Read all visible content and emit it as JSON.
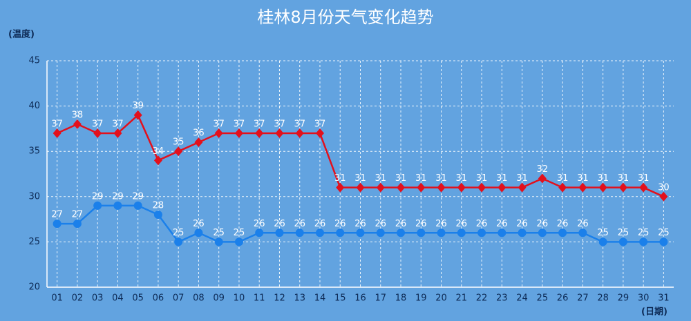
{
  "chart_data": {
    "type": "line",
    "title": "桂林8月份天气变化趋势",
    "y_label": "(温度)",
    "x_label": "(日期)",
    "categories": [
      "01",
      "02",
      "03",
      "04",
      "05",
      "06",
      "07",
      "08",
      "09",
      "10",
      "11",
      "12",
      "13",
      "14",
      "15",
      "16",
      "17",
      "18",
      "19",
      "20",
      "21",
      "22",
      "23",
      "24",
      "25",
      "26",
      "27",
      "28",
      "29",
      "30",
      "31"
    ],
    "series": [
      {
        "color": "#e3101c",
        "marker": "diamond",
        "values": [
          37,
          38,
          37,
          37,
          39,
          34,
          35,
          36,
          37,
          37,
          37,
          37,
          37,
          37,
          31,
          31,
          31,
          31,
          31,
          31,
          31,
          31,
          31,
          31,
          32,
          31,
          31,
          31,
          31,
          31,
          30
        ]
      },
      {
        "color": "#1b80ea",
        "marker": "circle",
        "values": [
          27,
          27,
          29,
          29,
          29,
          28,
          25,
          26,
          25,
          25,
          26,
          26,
          26,
          26,
          26,
          26,
          26,
          26,
          26,
          26,
          26,
          26,
          26,
          26,
          26,
          26,
          26,
          25,
          25,
          25,
          25
        ]
      }
    ],
    "ylim": [
      20,
      45
    ],
    "yticks": [
      20,
      25,
      30,
      35,
      40,
      45
    ],
    "grid": true
  }
}
